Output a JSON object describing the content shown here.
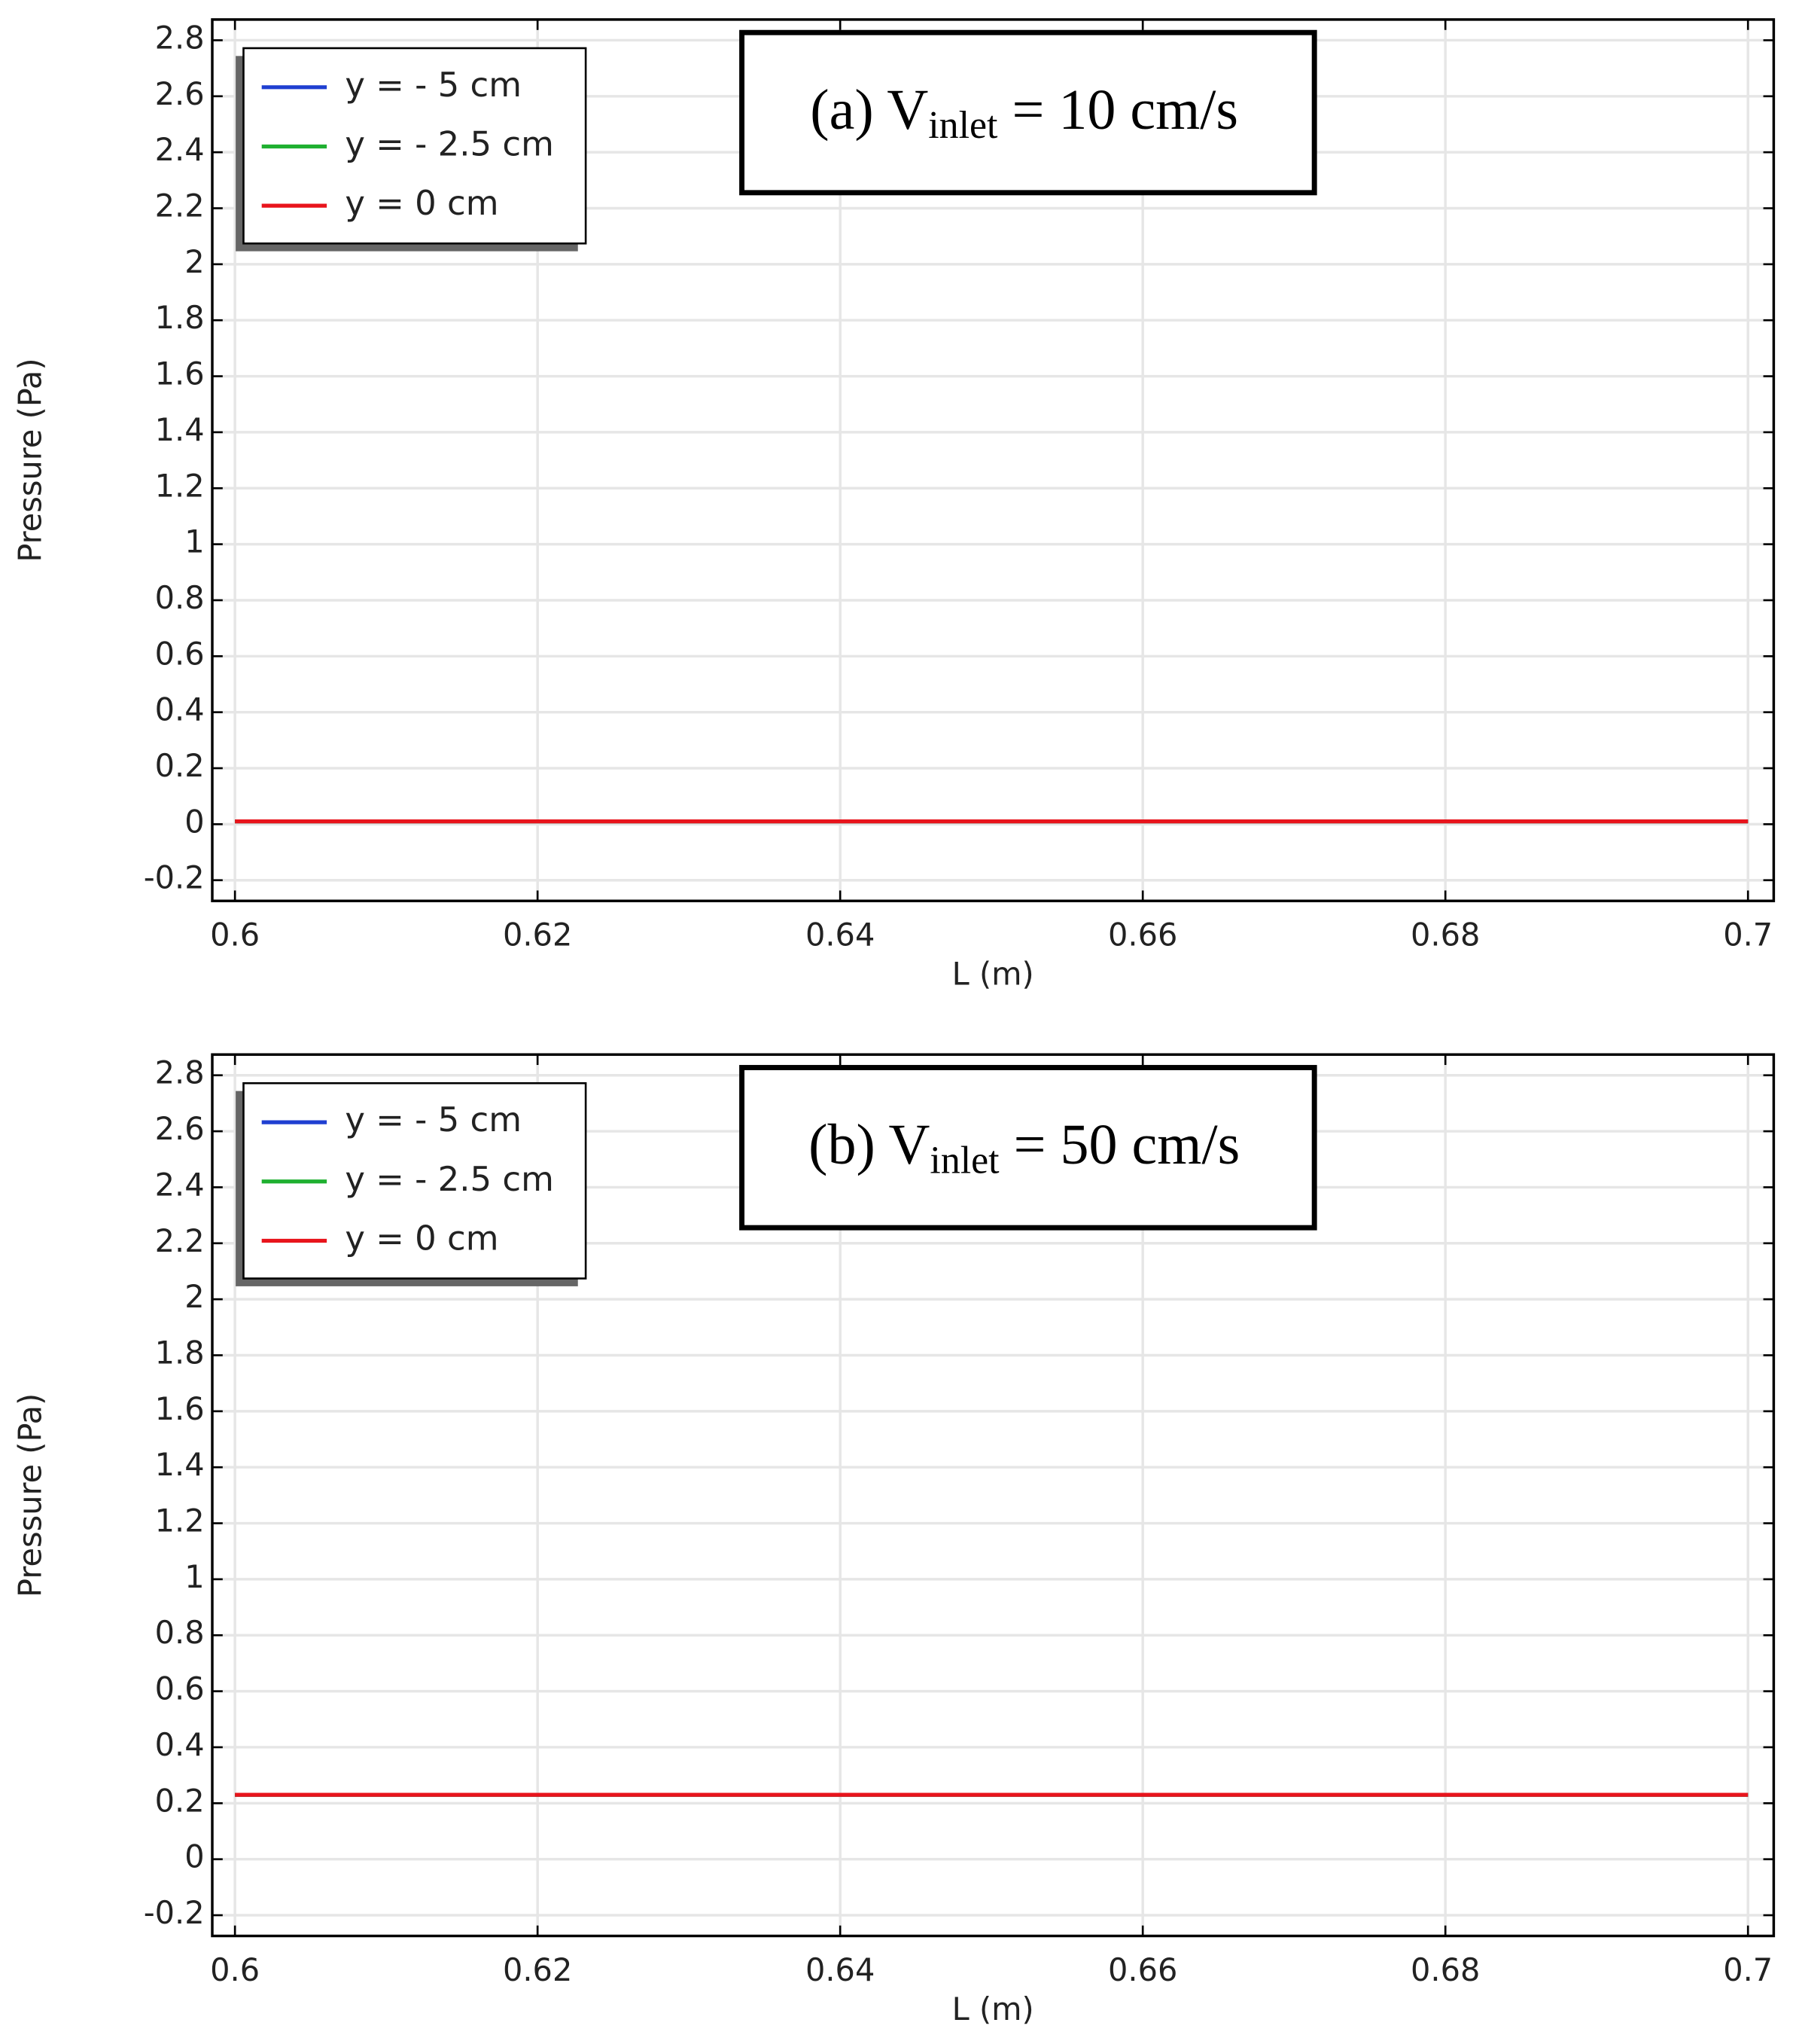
{
  "chart_data": [
    {
      "type": "line",
      "annotation": {
        "prefix": "(a) V",
        "subscript": "inlet",
        "suffix": " = 10 cm/s"
      },
      "xlabel": "L (m)",
      "ylabel": "Pressure (Pa)",
      "x": [
        0.6,
        0.65,
        0.7
      ],
      "series": [
        {
          "name": "y = - 5 cm",
          "color": "#1f3fd1",
          "values": [
            0.01,
            0.01,
            0.01
          ]
        },
        {
          "name": "y = - 2.5 cm",
          "color": "#1fb030",
          "values": [
            0.01,
            0.01,
            0.01
          ]
        },
        {
          "name": "y = 0 cm",
          "color": "#e8141c",
          "values": [
            0.01,
            0.01,
            0.01
          ]
        }
      ],
      "xlim": [
        0.5985,
        0.7017
      ],
      "xticks": [
        0.6,
        0.62,
        0.64,
        0.66,
        0.68,
        0.7
      ],
      "ylim": [
        -0.274,
        2.874
      ],
      "yticks": [
        -0.2,
        0,
        0.2,
        0.4,
        0.6,
        0.8,
        1,
        1.2,
        1.4,
        1.6,
        1.8,
        2,
        2.2,
        2.4,
        2.6,
        2.8
      ],
      "grid": true,
      "legend": "upper left"
    },
    {
      "type": "line",
      "annotation": {
        "prefix": "(b) V",
        "subscript": "inlet",
        "suffix": " = 50 cm/s"
      },
      "xlabel": "L (m)",
      "ylabel": "Pressure (Pa)",
      "x": [
        0.6,
        0.65,
        0.7
      ],
      "series": [
        {
          "name": "y = - 5 cm",
          "color": "#1f3fd1",
          "values": [
            0.23,
            0.23,
            0.23
          ]
        },
        {
          "name": "y = - 2.5 cm",
          "color": "#1fb030",
          "values": [
            0.23,
            0.23,
            0.23
          ]
        },
        {
          "name": "y = 0 cm",
          "color": "#e8141c",
          "values": [
            0.23,
            0.23,
            0.23
          ]
        }
      ],
      "xlim": [
        0.5985,
        0.7017
      ],
      "xticks": [
        0.6,
        0.62,
        0.64,
        0.66,
        0.68,
        0.7
      ],
      "ylim": [
        -0.274,
        2.874
      ],
      "yticks": [
        -0.2,
        0,
        0.2,
        0.4,
        0.6,
        0.8,
        1,
        1.2,
        1.4,
        1.6,
        1.8,
        2,
        2.2,
        2.4,
        2.6,
        2.8
      ],
      "grid": true,
      "legend": "upper left"
    }
  ]
}
